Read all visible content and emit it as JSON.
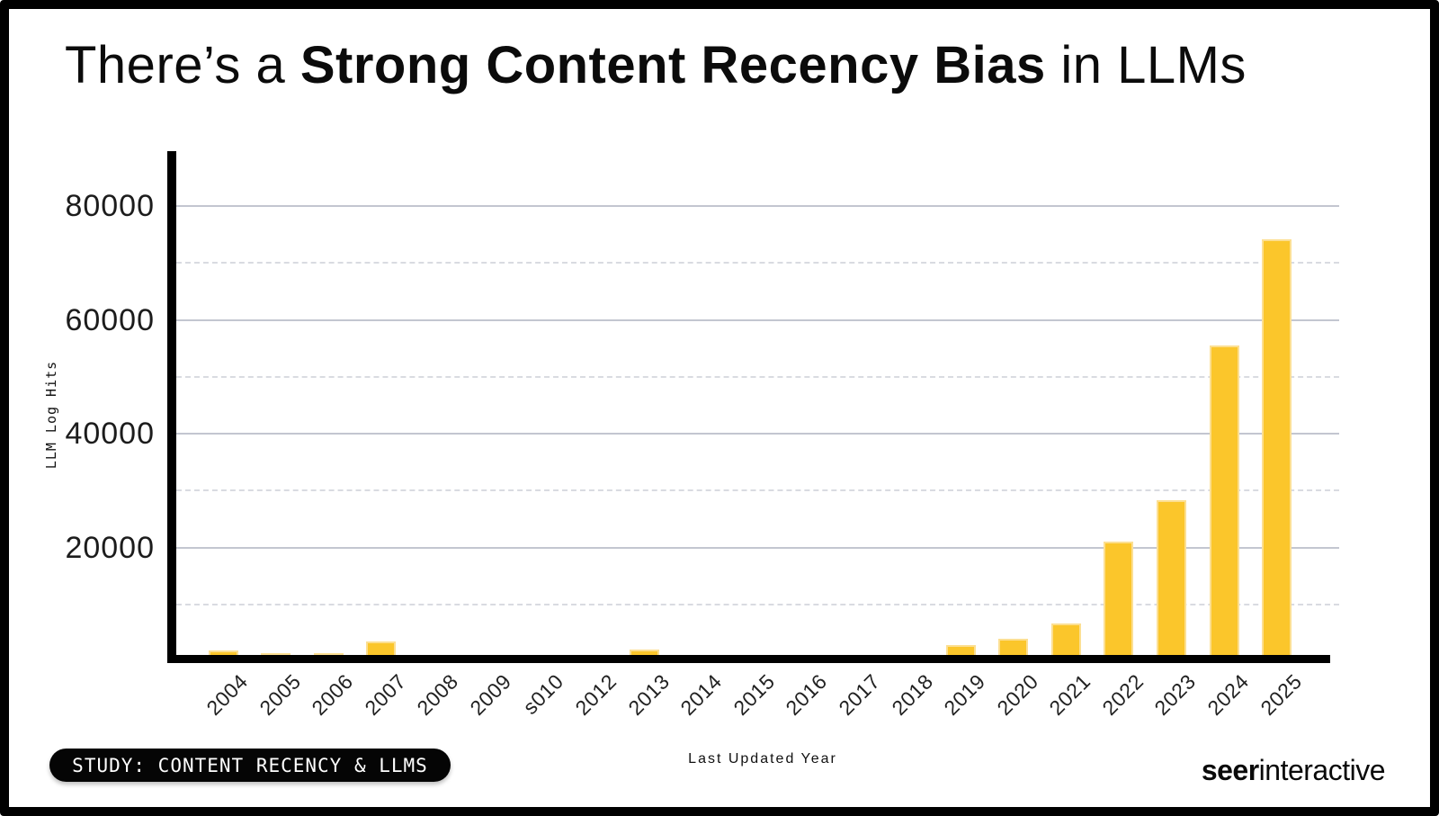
{
  "title": {
    "prefix": "There’s a ",
    "bold": "Strong Content Recency Bias",
    "suffix": " in LLMs"
  },
  "chart_data": {
    "type": "bar",
    "categories": [
      "2004",
      "2005",
      "2006",
      "2007",
      "2008",
      "2009",
      "s010",
      "2012",
      "2013",
      "2014",
      "2015",
      "2016",
      "2017",
      "2018",
      "2019",
      "2020",
      "2021",
      "2022",
      "2023",
      "2024",
      "2025"
    ],
    "values": [
      1900,
      1400,
      1400,
      3400,
      0,
      0,
      0,
      0,
      2000,
      0,
      0,
      0,
      0,
      0,
      2800,
      3900,
      6700,
      21000,
      28300,
      55500,
      74200
    ],
    "title": "There’s a Strong Content Recency Bias in LLMs",
    "xlabel": "Last Updated Year",
    "ylabel": "LLM Log Hits",
    "ylim": [
      0,
      88000
    ],
    "yticks": [
      20000,
      40000,
      60000,
      80000
    ],
    "ytick_labels": [
      "20000",
      "40000",
      "60000",
      "80000"
    ],
    "minor_gridlines_dashed": [
      10000,
      30000,
      50000,
      70000
    ],
    "grid": true,
    "legend": false,
    "bar_color": "#FBC62B",
    "bar_edge_color": "#FCDF92",
    "solid_grid_color": "#C3C6D0",
    "dashed_grid_color": "#D9DBE1",
    "axis_color": "#000000"
  },
  "badge": {
    "label": "STUDY: CONTENT RECENCY & LLMS"
  },
  "logo": {
    "bold": "seer",
    "regular": "interactive"
  }
}
